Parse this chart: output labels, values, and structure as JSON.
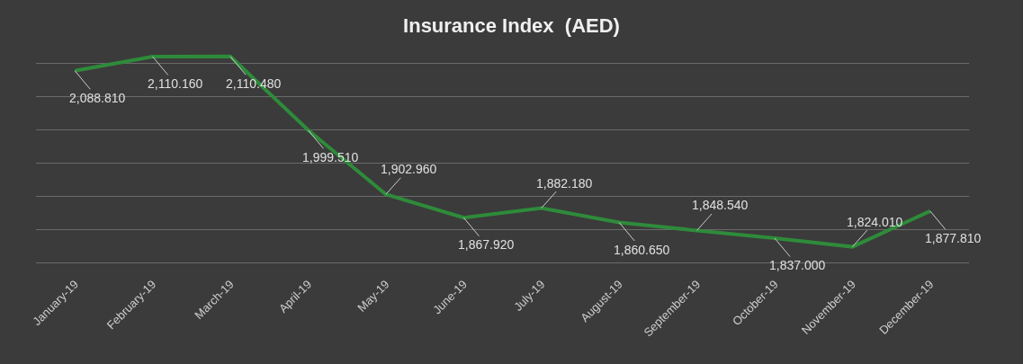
{
  "chart_data": {
    "type": "line",
    "title": "Insurance Index  (AED)",
    "categories": [
      "January-19",
      "February-19",
      "March-19",
      "April-19",
      "May-19",
      "June-19",
      "July-19",
      "August-19",
      "September-19",
      "October-19",
      "November-19",
      "December-19"
    ],
    "series": [
      {
        "color": "#2e8b3a",
        "values": [
          2088.81,
          2110.16,
          2110.48,
          1999.51,
          1902.96,
          1867.92,
          1882.18,
          1860.65,
          1848.54,
          1837.0,
          1824.01,
          1877.81
        ],
        "value_labels": [
          "2,088.810",
          "2,110.160",
          "2,110.480",
          "1,999.510",
          "1,902.960",
          "1,867.920",
          "1,882.180",
          "1,860.650",
          "1,848.540",
          "1,837.000",
          "1,824.010",
          "1,877.810"
        ]
      }
    ],
    "grid": "y",
    "marker": "none",
    "line_style": "solid"
  }
}
